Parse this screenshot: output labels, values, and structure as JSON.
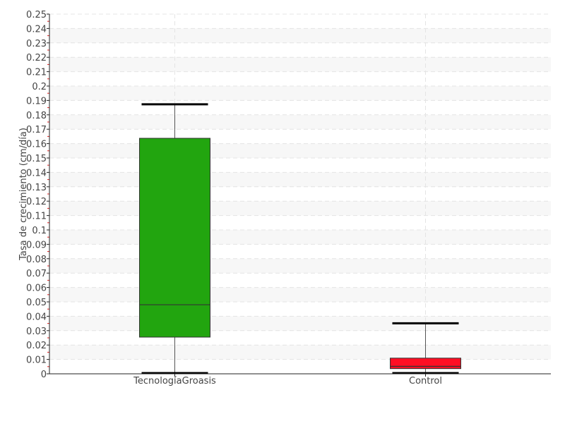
{
  "chart_data": {
    "type": "boxplot",
    "title": "",
    "xlabel": "",
    "ylabel": "Tasa de crecimiento (cm/día)",
    "ylim": [
      0,
      0.25
    ],
    "ytick_step": 0.01,
    "grid": true,
    "categories": [
      "TecnologíaGroasis",
      "Control"
    ],
    "series": [
      {
        "category": "TecnologíaGroasis",
        "min": 0.0005,
        "q1": 0.0255,
        "median": 0.048,
        "q3": 0.1637,
        "max": 0.1873,
        "color": "#22a50f"
      },
      {
        "category": "Control",
        "min": 0.0005,
        "q1": 0.0036,
        "median": 0.0052,
        "q3": 0.0109,
        "max": 0.0351,
        "color": "#ff0f24"
      }
    ],
    "yticks": [
      "0",
      "0.01",
      "0.02",
      "0.03",
      "0.04",
      "0.05",
      "0.06",
      "0.07",
      "0.08",
      "0.09",
      "0.1",
      "0.11",
      "0.12",
      "0.13",
      "0.14",
      "0.15",
      "0.16",
      "0.17",
      "0.18",
      "0.19",
      "0.2",
      "0.21",
      "0.22",
      "0.23",
      "0.24",
      "0.25"
    ]
  }
}
